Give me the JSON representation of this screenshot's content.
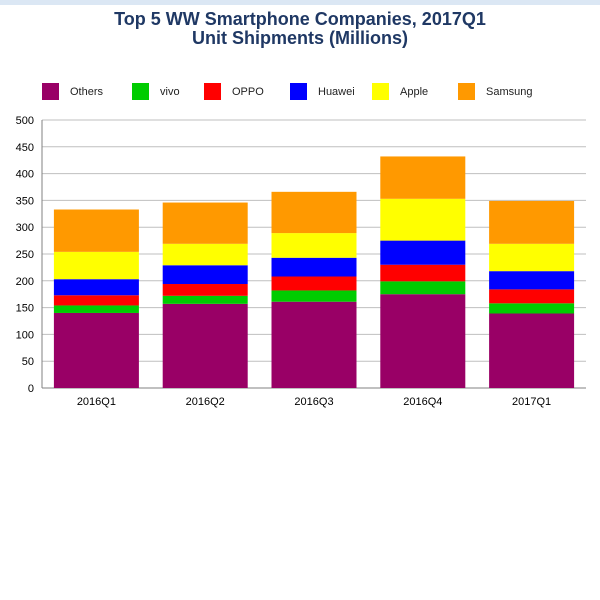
{
  "chart_data": {
    "type": "bar",
    "stacked": true,
    "title": "Top 5 WW Smartphone Companies, 2017Q1",
    "subtitle": "Unit Shipments (Millions)",
    "categories": [
      "2016Q1",
      "2016Q2",
      "2016Q3",
      "2016Q4",
      "2017Q1"
    ],
    "series": [
      {
        "name": "Others",
        "color": "#990066",
        "values": [
          140,
          157,
          161,
          175,
          139
        ]
      },
      {
        "name": "vivo",
        "color": "#00cc00",
        "values": [
          14,
          15,
          21,
          24,
          19
        ]
      },
      {
        "name": "OPPO",
        "color": "#ff0000",
        "values": [
          19,
          22,
          26,
          31,
          26
        ]
      },
      {
        "name": "Huawei",
        "color": "#0000ff",
        "values": [
          30,
          35,
          35,
          45,
          34
        ]
      },
      {
        "name": "Apple",
        "color": "#ffff00",
        "values": [
          51,
          40,
          46,
          78,
          51
        ]
      },
      {
        "name": "Samsung",
        "color": "#ff9900",
        "values": [
          79,
          77,
          77,
          79,
          80
        ]
      }
    ],
    "ylim": [
      0,
      500
    ],
    "yticks": [
      "0",
      "50",
      "100",
      "150",
      "200",
      "250",
      "300",
      "350",
      "400",
      "450",
      "500"
    ],
    "grid": true,
    "legend_position": "top"
  }
}
